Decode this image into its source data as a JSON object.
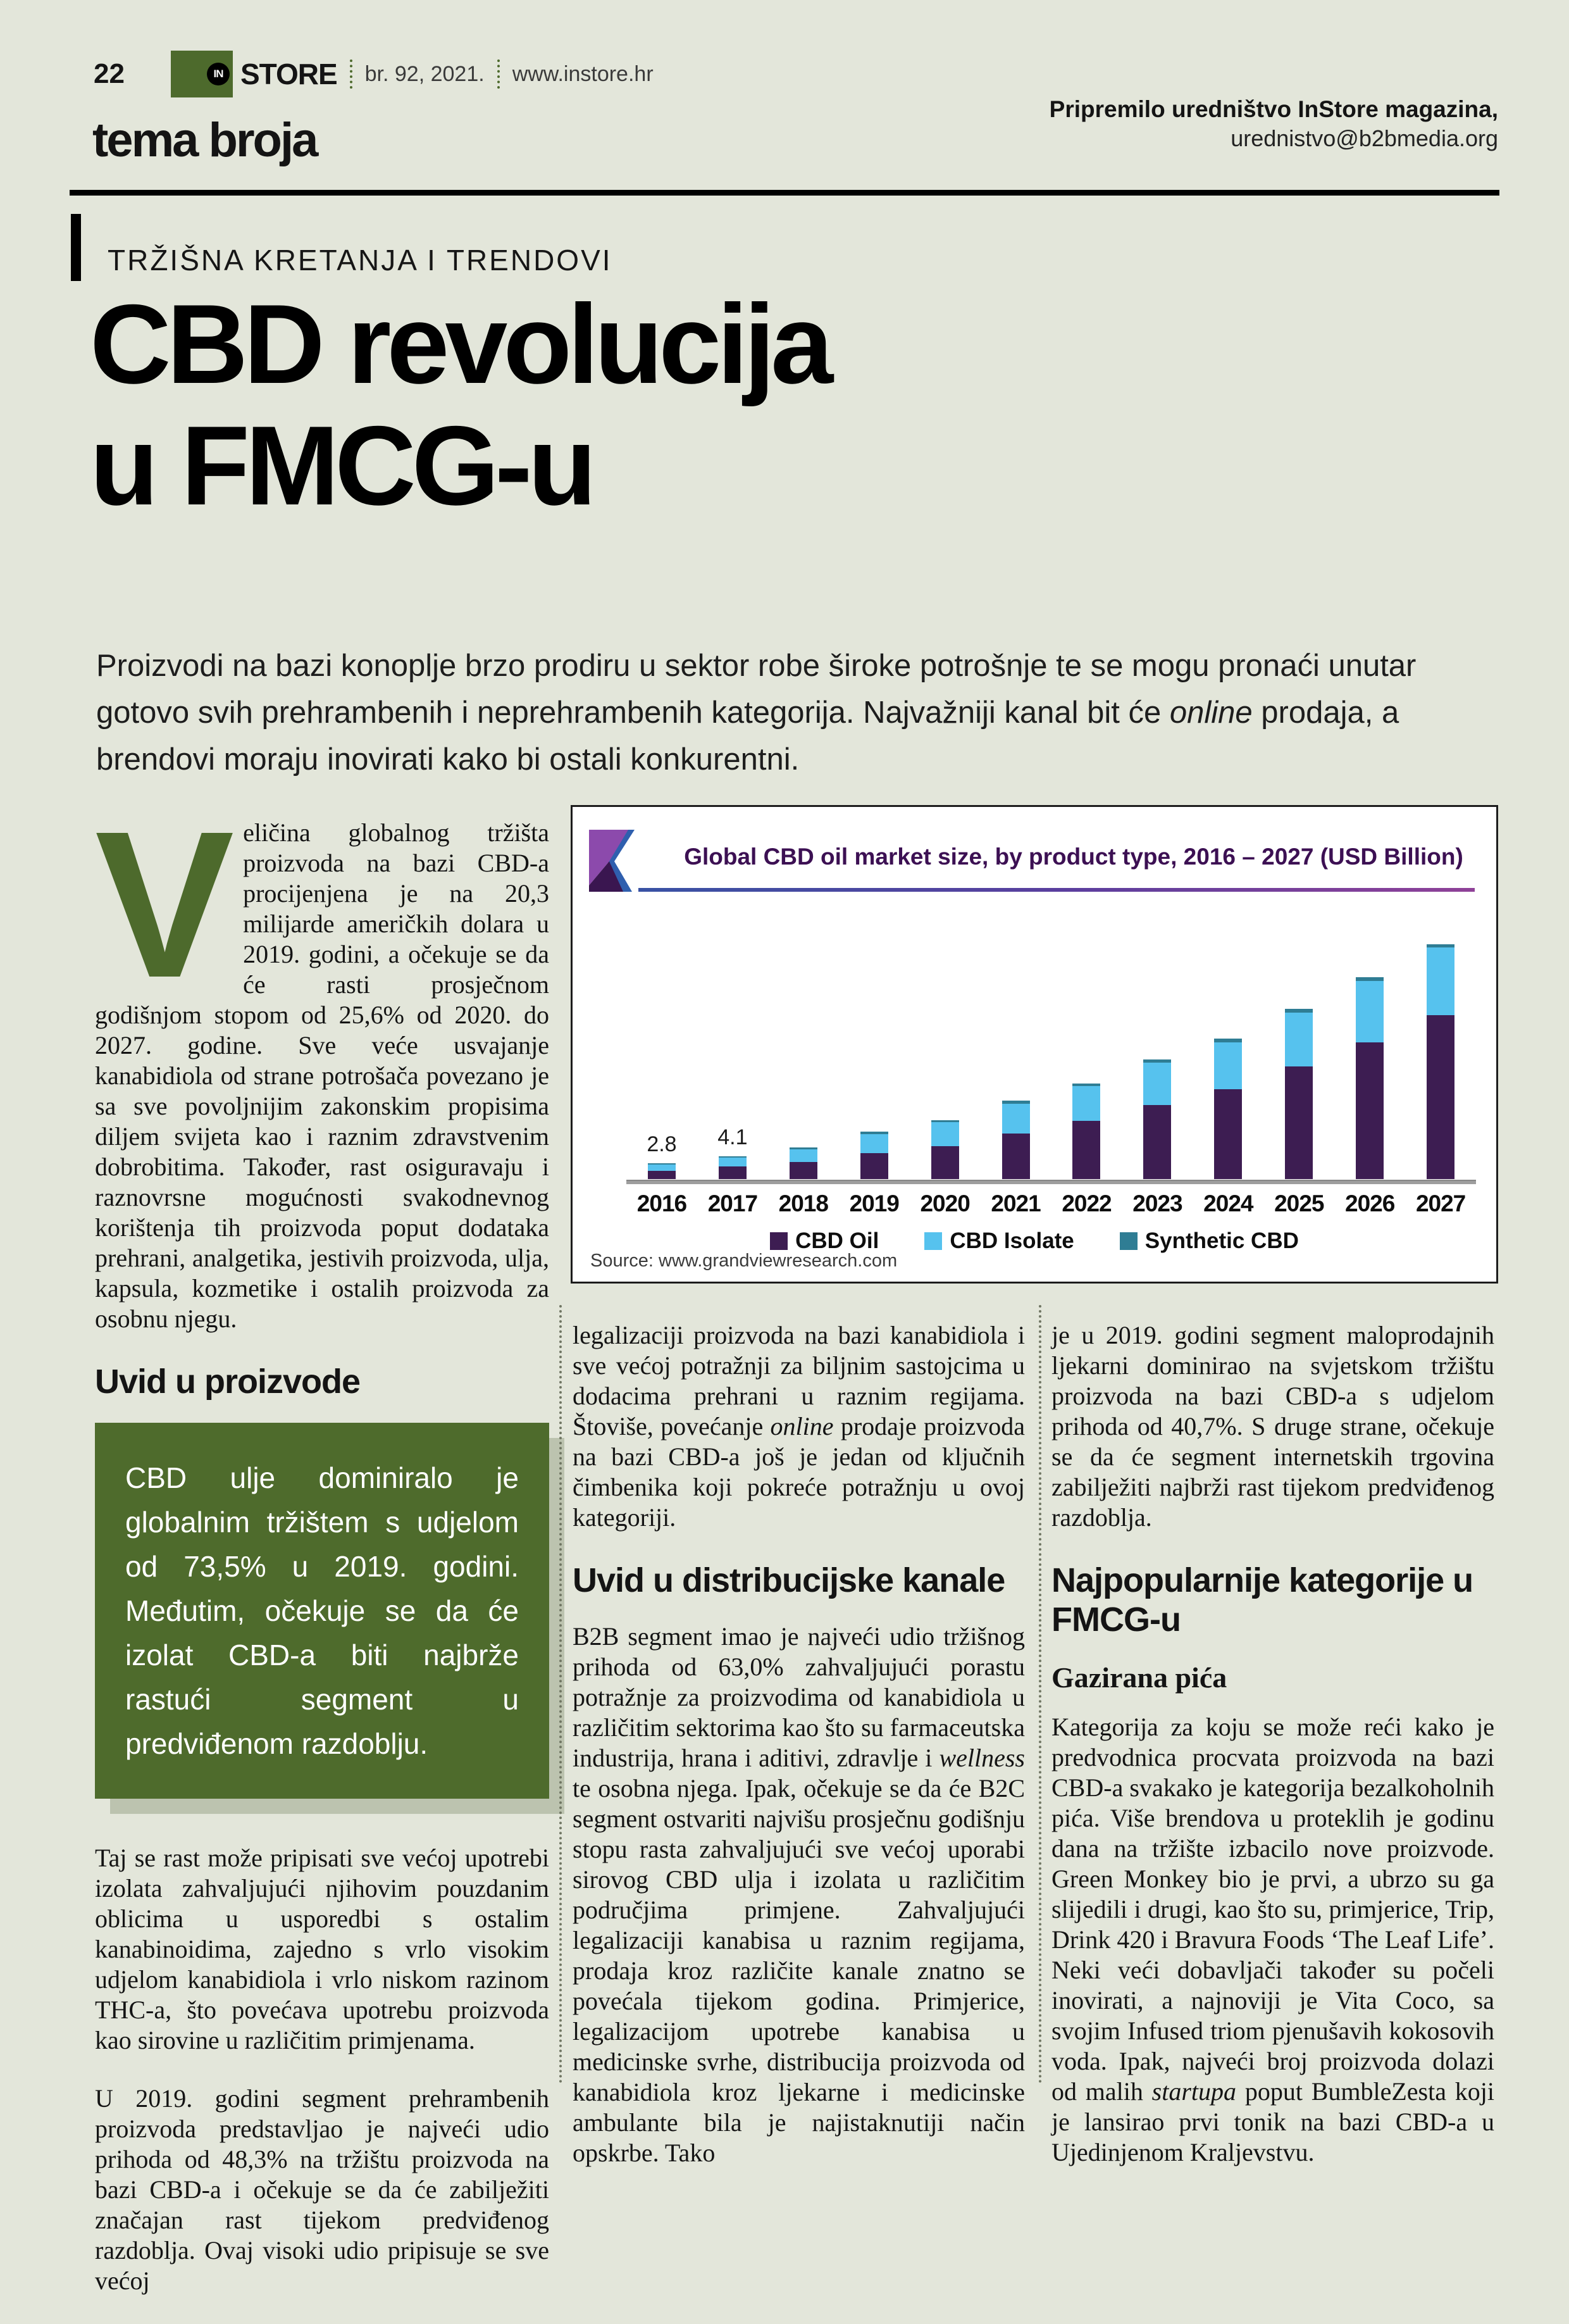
{
  "theme": {
    "page_background": "#e3e6da",
    "brand_green": "#4d6a2c",
    "callout_green": "#4e6b2c",
    "callout_shadow": "#bcc3af",
    "chart_title_purple": "#3c1053",
    "rule_gradient": [
      "#3952a4",
      "#8f4198"
    ]
  },
  "page": {
    "number": "22",
    "brand_in": "IN",
    "brand_name": "STORE",
    "issue": "br. 92, 2021.",
    "website": "www.instore.hr",
    "section_title": "tema broja",
    "credit_line1": "Pripremilo uredništvo InStore magazina,",
    "credit_line2": "urednistvo@b2bmedia.org",
    "kicker": "TRŽIŠNA KRETANJA I TRENDOVI",
    "headline_line1": "CBD revolucija",
    "headline_line2": "u FMCG-u"
  },
  "lede": {
    "segments": [
      {
        "t": "Proizvodi na bazi konoplje brzo prodiru u sektor robe široke potrošnje te se mogu pronaći unutar gotovo svih prehrambenih i neprehrambenih kategorija. Najvažniji kanal bit će "
      },
      {
        "t": "online",
        "i": true
      },
      {
        "t": " prodaja, a brendovi moraju inovirati kako bi ostali konkurentni."
      }
    ]
  },
  "article": {
    "col1": {
      "dropcap": "V",
      "p1_rest": "eličina globalnog tržišta proizvoda na bazi CBD-a procijenjena je na 20,3 milijarde američkih dolara u 2019. godini, a očekuje se da će rasti prosječnom godišnjom stopom od 25,6% od 2020. do 2027. godine. Sve veće usvajanje kanabidiola od strane potrošača povezano je sa sve povoljnijim zakonskim propisima diljem svijeta kao i raznim zdravstvenim dobrobitima. Također, rast osiguravaju i raznovrsne mogućnosti svakodnevnog korištenja tih proizvoda poput dodataka prehrani, analgetika, jestivih proizvoda, ulja, kapsula, kozmetike i ostalih proizvoda za osobnu njegu.",
      "heading": "Uvid u proizvode",
      "callout": "CBD ulje dominiralo je globalnim tržištem s udjelom od 73,5% u 2019. godini. Međutim, očekuje se da će izolat CBD-a biti najbrže rastući segment u predviđenom razdoblju.",
      "p2": "Taj se rast može pripisati sve većoj upotrebi izolata zahvaljujući njihovim pouzdanim oblicima u usporedbi s ostalim kanabinoidima, zajedno s vrlo visokim udjelom kanabidiola i vrlo niskom razinom THC-a, što povećava upotrebu proizvoda kao sirovine u različitim primjenama.",
      "p3": "U 2019. godini segment prehrambenih proizvoda predstavljao je najveći udio prihoda od 48,3% na tržištu proizvoda na bazi CBD-a i očekuje se da će zabilježiti značajan rast tijekom predviđenog razdoblja. Ovaj visoki udio pripisuje se sve većoj"
    },
    "col2": {
      "p1": [
        {
          "t": "legalizaciji proizvoda na bazi kanabidiola i sve većoj potražnji za biljnim sastojcima u dodacima prehrani u raznim regijama. Štoviše, povećanje "
        },
        {
          "t": "online",
          "i": true
        },
        {
          "t": " prodaje proizvoda na bazi CBD-a još je jedan od ključnih čimbenika koji pokreće potražnju u ovoj kategoriji."
        }
      ],
      "heading": "Uvid u distribucijske kanale",
      "p2": [
        {
          "t": "B2B segment imao je najveći udio tržišnog prihoda od 63,0% zahvaljujući porastu potražnje za proizvodima od kanabidiola u različitim sektorima kao što su farmaceutska industrija, hrana i aditivi, zdravlje i "
        },
        {
          "t": "wellness",
          "i": true
        },
        {
          "t": " te osobna njega. Ipak, očekuje se da će B2C segment ostvariti najvišu prosječnu godišnju stopu rasta zahvaljujući sve većoj uporabi sirovog CBD ulja i izolata u različitim područjima primjene. Zahvaljujući legalizaciji kanabisa u raznim regijama, prodaja kroz različite kanale znatno se povećala tijekom godina. Primjerice, legalizacijom upotrebe kanabisa u medicinske svrhe, distribucija proizvoda od kanabidiola kroz ljekarne i medicinske ambulante bila je najistaknutiji način opskrbe. Tako"
        }
      ]
    },
    "col3": {
      "p1": "je u 2019. godini segment maloprodajnih ljekarni dominirao na svjetskom tržištu proizvoda na bazi CBD-a s udjelom prihoda od 40,7%. S druge strane, očekuje se da će segment internetskih trgovina zabilježiti najbrži rast tijekom predviđenog razdoblja.",
      "heading": "Najpopularnije kategorije u FMCG-u",
      "subheading": "Gazirana pića",
      "p2": [
        {
          "t": "Kategorija za koju se može reći kako je predvodnica procvata proizvoda na bazi CBD-a svakako je kategorija bezalkoholnih pića. Više brendova u proteklih je godinu dana na tržište izbacilo nove proizvode. Green Monkey bio je prvi, a ubrzo su ga slijedili i drugi, kao što su, primjerice, Trip, Drink 420 i Bravura Foods ‘The Leaf Life’. Neki veći dobavljači također su počeli inovirati, a najnoviji je Vita Coco, sa svojim Infused triom pjenušavih kokosovih voda. Ipak, najveći broj proizvoda dolazi od malih "
        },
        {
          "t": "startupa",
          "i": true
        },
        {
          "t": " poput BumbleZesta koji je lansirao prvi tonik na bazi CBD-a u Ujedinjenom Kraljevstvu."
        }
      ]
    }
  },
  "chart_data": {
    "type": "bar",
    "stacked": true,
    "title": "Global CBD oil market size, by product type, 2016 – 2027 (USD Billion)",
    "source": "Source: www.grandviewresearch.com",
    "categories": [
      "2016",
      "2017",
      "2018",
      "2019",
      "2020",
      "2021",
      "2022",
      "2023",
      "2024",
      "2025",
      "2026",
      "2027"
    ],
    "series": [
      {
        "name": "CBD Oil",
        "color": "#3d1d52",
        "values": [
          1.5,
          2.2,
          3.0,
          4.6,
          5.9,
          8.1,
          10.3,
          13.2,
          16.0,
          20.0,
          24.3,
          29.1
        ]
      },
      {
        "name": "CBD Isolate",
        "color": "#56c2ee",
        "values": [
          1.1,
          1.6,
          2.3,
          3.4,
          4.2,
          5.3,
          6.2,
          7.5,
          8.3,
          9.6,
          10.9,
          12.0
        ]
      },
      {
        "name": "Synthetic CBD",
        "color": "#2f7d94",
        "values": [
          0.2,
          0.3,
          0.3,
          0.4,
          0.4,
          0.5,
          0.5,
          0.5,
          0.6,
          0.6,
          0.6,
          0.6
        ]
      }
    ],
    "totals": [
      2.8,
      4.1,
      5.6,
      8.4,
      10.5,
      13.9,
      17.0,
      21.2,
      24.9,
      30.2,
      35.8,
      41.7
    ],
    "value_labels": {
      "2016": "2.8",
      "2017": "4.1"
    },
    "ylim": [
      0,
      42
    ],
    "grid": false,
    "legend_position": "bottom"
  }
}
